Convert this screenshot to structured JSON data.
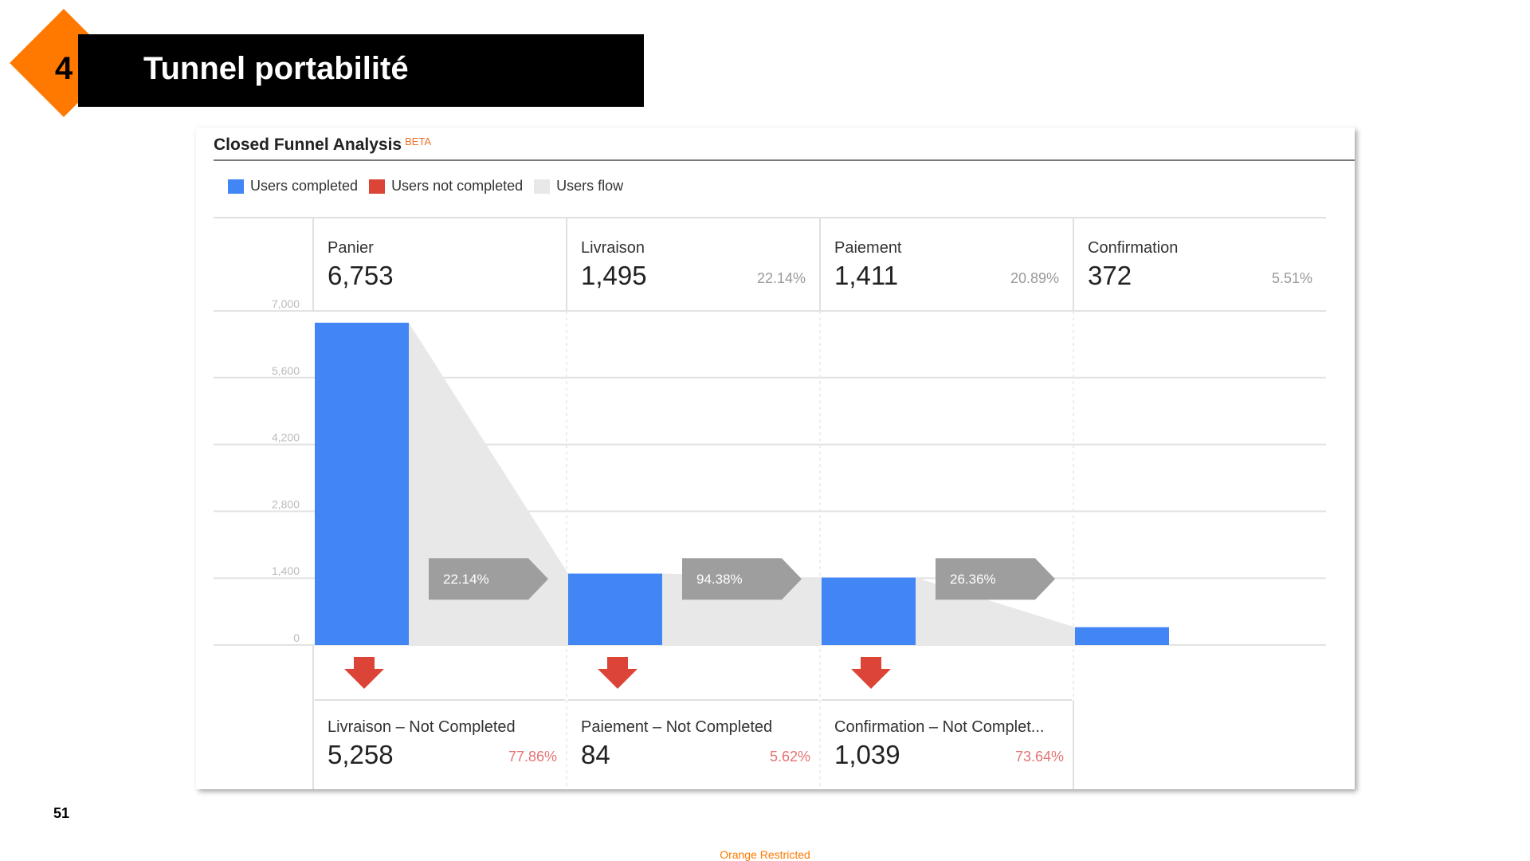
{
  "slide": {
    "number_badge": "4",
    "title": "Tunnel portabilité",
    "page_number": "51",
    "footer": "Orange Restricted"
  },
  "panel": {
    "title": "Closed Funnel Analysis",
    "beta": "BETA",
    "legend": [
      {
        "label": "Users completed",
        "color": "#4285f4"
      },
      {
        "label": "Users not completed",
        "color": "#db4437"
      },
      {
        "label": "Users flow",
        "color": "#e8e8e8"
      }
    ]
  },
  "chart_data": {
    "type": "bar",
    "ylim": [
      0,
      7000
    ],
    "yticks": [
      "7,000",
      "5,600",
      "4,200",
      "2,800",
      "1,400",
      "0"
    ],
    "ytick_values": [
      7000,
      5600,
      4200,
      2800,
      1400,
      0
    ],
    "categories": [
      "Panier",
      "Livraison",
      "Paiement",
      "Confirmation"
    ],
    "values": [
      6753,
      1495,
      1411,
      372
    ],
    "stages": [
      {
        "name": "Panier",
        "value_label": "6,753",
        "pct": ""
      },
      {
        "name": "Livraison",
        "value_label": "1,495",
        "pct": "22.14%"
      },
      {
        "name": "Paiement",
        "value_label": "1,411",
        "pct": "20.89%"
      },
      {
        "name": "Confirmation",
        "value_label": "372",
        "pct": "5.51%"
      }
    ],
    "flow_rates": [
      "22.14%",
      "94.38%",
      "26.36%"
    ],
    "not_completed": [
      {
        "name": "Livraison – Not Completed",
        "value_label": "5,258",
        "value": 5258,
        "pct": "77.86%"
      },
      {
        "name": "Paiement – Not Completed",
        "value_label": "84",
        "value": 84,
        "pct": "5.62%"
      },
      {
        "name": "Confirmation – Not Complet...",
        "value_label": "1,039",
        "value": 1039,
        "pct": "73.64%"
      }
    ],
    "colors": {
      "completed": "#4285f4",
      "not_completed": "#db4437",
      "flow": "#e8e8e8",
      "rate_arrow": "#9e9e9e"
    }
  }
}
